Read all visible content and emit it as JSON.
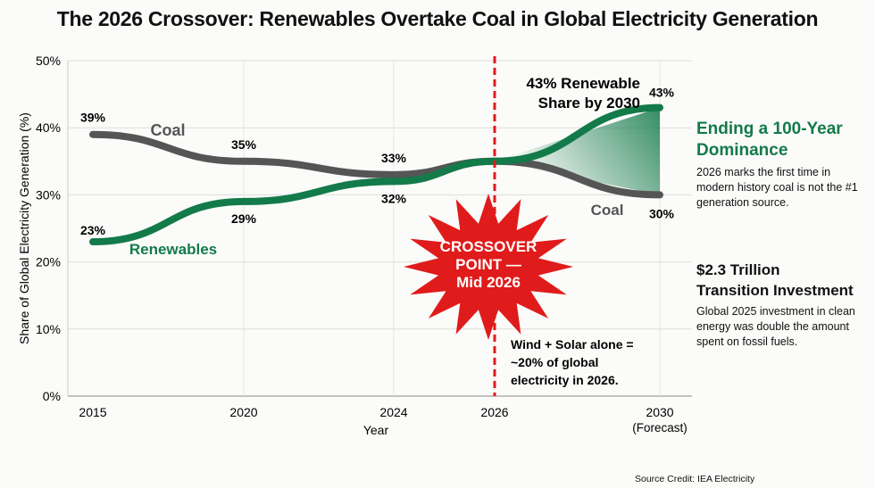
{
  "title": "The 2026 Crossover: Renewables Overtake Coal in Global Electricity Generation",
  "chart_data": {
    "type": "line",
    "title": "The 2026 Crossover: Renewables Overtake Coal in Global Electricity Generation",
    "xlabel": "Year",
    "ylabel": "Share of Global Electricity Generation (%)",
    "categories": [
      "2015",
      "2020",
      "2024",
      "2026",
      "2030"
    ],
    "x_tick_labels": [
      "2015",
      "2020",
      "2024",
      "2026",
      "2030\n(Forecast)"
    ],
    "x_tick_sublabel": "(Forecast)",
    "y_ticks": [
      "0%",
      "10%",
      "20%",
      "30%",
      "40%",
      "50%"
    ],
    "ylim": [
      0,
      50
    ],
    "grid": true,
    "series": [
      {
        "name": "Coal",
        "color": "#555555",
        "values": [
          39,
          35,
          33,
          35,
          30
        ],
        "labels": [
          "39%",
          "35%",
          "33%",
          "",
          "30%"
        ]
      },
      {
        "name": "Renewables",
        "color": "#137a4a",
        "values": [
          23,
          29,
          32,
          35,
          43
        ],
        "labels": [
          "23%",
          "29%",
          "32%",
          "",
          "43%"
        ]
      }
    ],
    "annotations": {
      "crossover": "CROSSOVER POINT — Mid 2026",
      "crossover_lines": [
        "CROSSOVER",
        "POINT —",
        "Mid 2026"
      ],
      "renewable_share": [
        "43% Renewable",
        "Share by 2030"
      ],
      "wind_solar": [
        "Wind + Solar alone =",
        "~20% of global",
        "electricity in 2026."
      ],
      "coal_label_end": "Coal"
    },
    "marker_color": "#e01b1b"
  },
  "side": {
    "h1": [
      "Ending a 100-Year",
      "Dominance"
    ],
    "p1": "2026 marks the first time in modern history coal is not the #1 generation source.",
    "h2a": "$2.3 Trillion",
    "h2b": "Transition Investment",
    "p2": "Global 2025 investment in clean energy was double the amount spent on fossil fuels."
  },
  "credit": "Source Credit: IEA Electricity"
}
